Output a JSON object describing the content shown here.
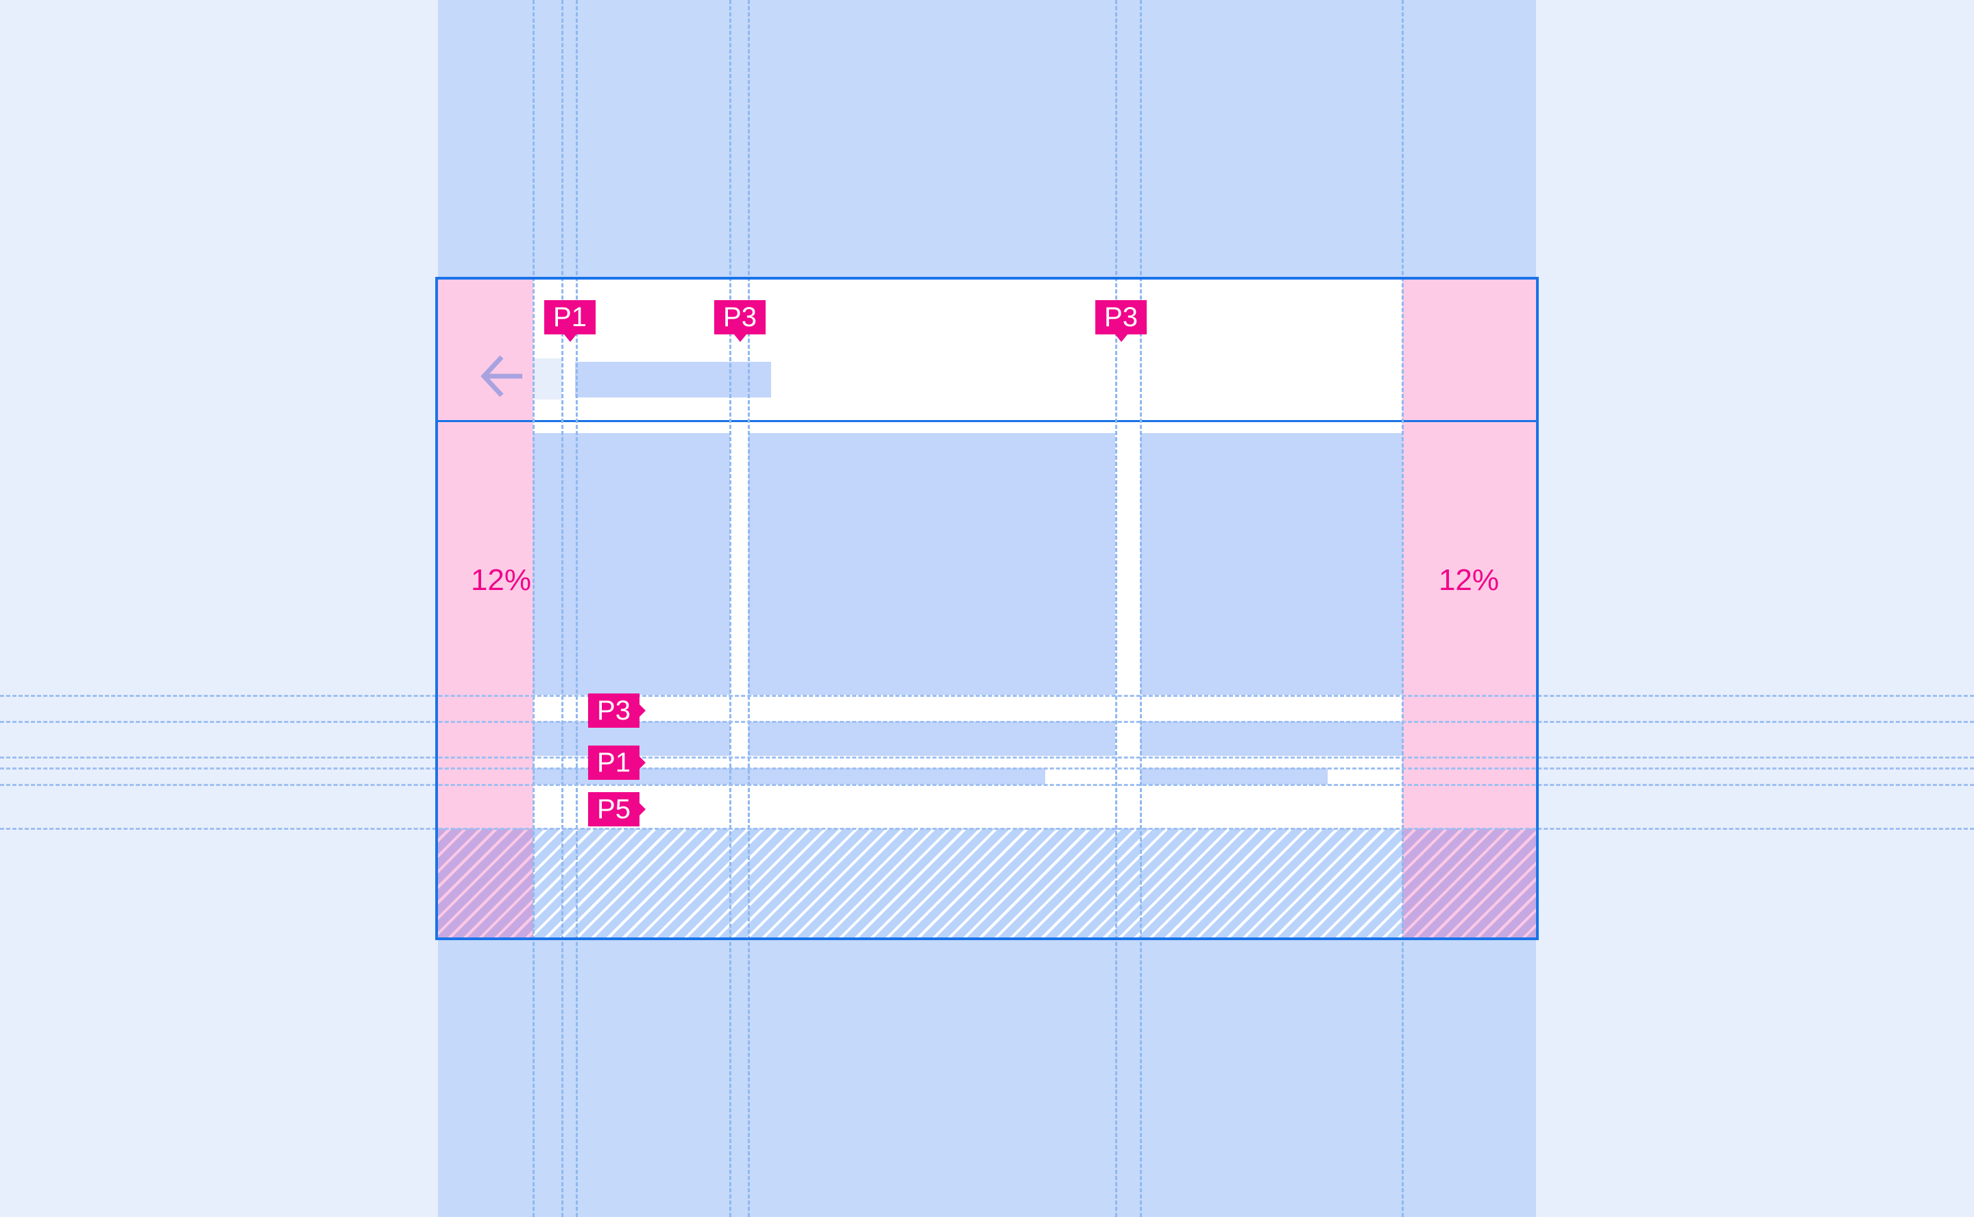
{
  "margins": {
    "left_label": "12%",
    "right_label": "12%"
  },
  "header": {
    "icon": "arrow-back-icon",
    "tags": [
      "P1",
      "P3",
      "P3"
    ]
  },
  "content": {
    "tags": [
      "P3",
      "P1",
      "P5"
    ]
  },
  "colors": {
    "accent": "#f0068a",
    "frame": "#1a73e8",
    "margin": "#fecbe6",
    "column": "#c5d9fa",
    "background": "#e8effc"
  }
}
